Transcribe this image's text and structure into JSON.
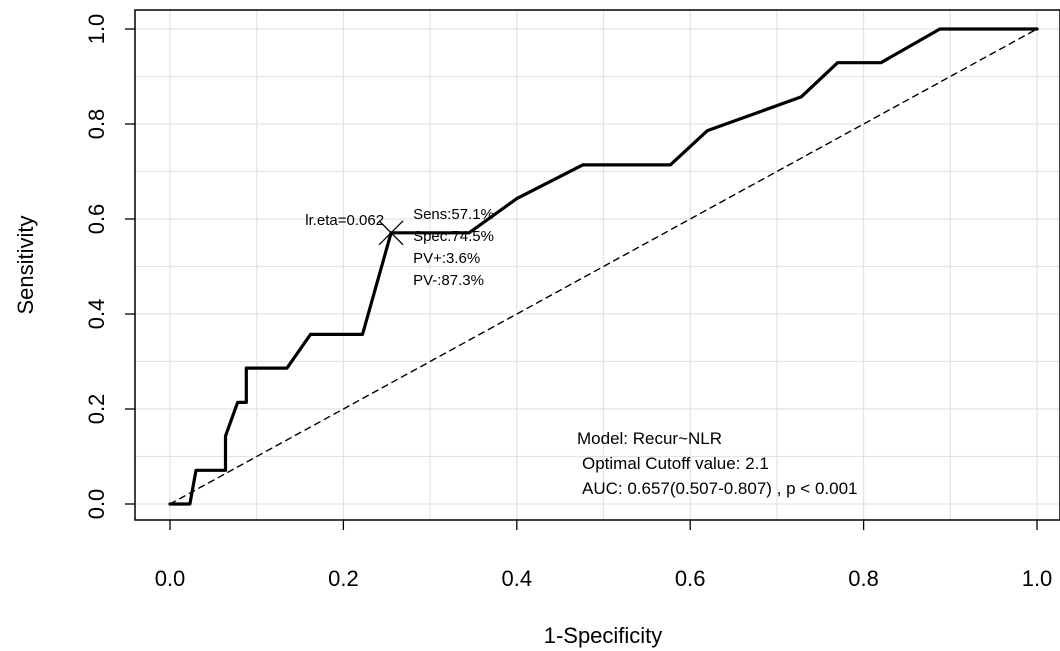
{
  "chart_data": {
    "type": "line",
    "title": "",
    "xlabel": "1-Specificity",
    "ylabel": "Sensitivity",
    "xlim": [
      0,
      1
    ],
    "ylim": [
      0,
      1
    ],
    "grid": true,
    "x_ticks": [
      "0.0",
      "0.2",
      "0.4",
      "0.6",
      "0.8",
      "1.0"
    ],
    "y_ticks": [
      "0.0",
      "0.2",
      "0.4",
      "0.6",
      "0.8",
      "1.0"
    ],
    "series": [
      {
        "style": "solid",
        "color": "#000000",
        "points": [
          [
            0.0,
            0.0
          ],
          [
            0.023,
            0.0
          ],
          [
            0.03,
            0.071
          ],
          [
            0.064,
            0.071
          ],
          [
            0.064,
            0.143
          ],
          [
            0.078,
            0.214
          ],
          [
            0.088,
            0.214
          ],
          [
            0.088,
            0.286
          ],
          [
            0.135,
            0.286
          ],
          [
            0.162,
            0.357
          ],
          [
            0.222,
            0.357
          ],
          [
            0.255,
            0.571
          ],
          [
            0.345,
            0.571
          ],
          [
            0.4,
            0.643
          ],
          [
            0.476,
            0.714
          ],
          [
            0.577,
            0.714
          ],
          [
            0.62,
            0.786
          ],
          [
            0.728,
            0.857
          ],
          [
            0.77,
            0.929
          ],
          [
            0.82,
            0.929
          ],
          [
            0.888,
            1.0
          ],
          [
            1.0,
            1.0
          ]
        ]
      },
      {
        "style": "dashed",
        "color": "#000000",
        "points": [
          [
            0,
            0
          ],
          [
            1,
            1
          ]
        ]
      }
    ],
    "optimal_point": {
      "x": 0.255,
      "y": 0.571,
      "label": "lr.eta=0.062"
    },
    "point_annotations": [
      "Sens:57.1%",
      "Spec:74.5%",
      "PV+:3.6%",
      "PV-:87.3%"
    ],
    "model_text": {
      "model": "Model: Recur~NLR",
      "cutoff": "Optimal Cutoff value:  2.1",
      "auc": "AUC:  0.657(0.507-0.807) , p < 0.001"
    }
  }
}
